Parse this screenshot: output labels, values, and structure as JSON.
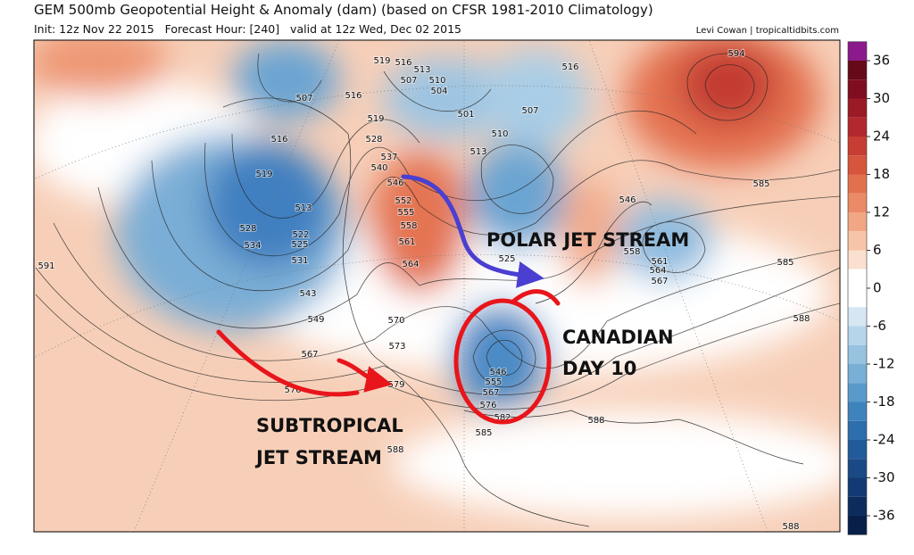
{
  "header": {
    "title": "GEM 500mb Geopotential Height & Anomaly (dam) (based on CFSR 1981-2010 Climatology)",
    "subtitle": "Init: 12z Nov 22 2015   Forecast Hour: [240]   valid at 12z Wed, Dec 02 2015",
    "credit": "Levi Cowan | tropicaltidbits.com"
  },
  "colorbar": {
    "ticks": [
      36,
      30,
      24,
      18,
      12,
      6,
      0,
      -6,
      -12,
      -18,
      -24,
      -30,
      -36
    ]
  },
  "contour_labels": [
    "519",
    "516",
    "513",
    "507",
    "510",
    "504",
    "501",
    "516",
    "507",
    "510",
    "513",
    "507",
    "516",
    "519",
    "516",
    "528",
    "537",
    "540",
    "546",
    "552",
    "555",
    "558",
    "561",
    "564",
    "519",
    "513",
    "528",
    "534",
    "522",
    "525",
    "531",
    "543",
    "549",
    "567",
    "576",
    "570",
    "573",
    "579",
    "594",
    "585",
    "585",
    "588",
    "546",
    "558",
    "561",
    "564",
    "567",
    "525",
    "546",
    "555",
    "567",
    "576",
    "582",
    "585",
    "588",
    "588",
    "588",
    "591"
  ],
  "annotations": [
    "POLAR JET STREAM",
    "CANADIAN",
    "DAY 10",
    "SUBTROPICAL",
    "JET STREAM"
  ]
}
